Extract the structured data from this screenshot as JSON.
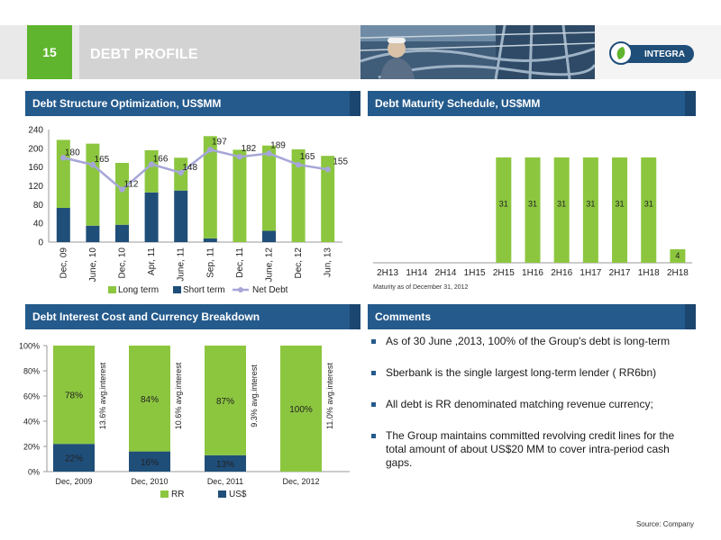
{
  "header": {
    "page_number": "15",
    "title": "DEBT PROFILE",
    "logo_text": "INTEGRA"
  },
  "colors": {
    "green": "#8cc63f",
    "navy": "#1f4e79",
    "panel_header": "#245a8c",
    "accent_green": "#5fb52e",
    "line": "#a6a6d8"
  },
  "panels": {
    "structure_title": "Debt Structure Optimization, US$MM",
    "maturity_title": "Debt Maturity Schedule, US$MM",
    "interest_title": "Debt Interest Cost and Currency Breakdown",
    "comments_title": "Comments"
  },
  "comments": [
    "As of 30 June ,2013, 100% of the Group's debt  is long-term",
    "Sberbank is the single largest long-term lender ( RR6bn)",
    "All debt  is RR denominated matching revenue currency;",
    "The Group maintains committed revolving credit lines for the total amount of about US$20 MM to cover intra-period cash gaps."
  ],
  "maturity_note": "Maturity as of December 31, 2012",
  "source": "Source: Company",
  "chart_data": [
    {
      "type": "bar",
      "stacked": true,
      "title": "Debt Structure Optimization, US$MM",
      "categories": [
        "Dec, 09",
        "June, 10",
        "Dec, 10",
        "Apr, 11",
        "June, 11",
        "Sep, 11",
        "Dec, 11",
        "June, 12",
        "Dec, 12",
        "Jun, 13"
      ],
      "series": [
        {
          "name": "Short term",
          "type": "bar",
          "values": [
            73,
            35,
            37,
            106,
            110,
            8,
            0,
            24,
            0,
            0
          ]
        },
        {
          "name": "Long term",
          "type": "bar",
          "values": [
            145,
            175,
            132,
            90,
            70,
            218,
            197,
            182,
            198,
            184
          ]
        },
        {
          "name": "Net Debt",
          "type": "line",
          "values": [
            180,
            165,
            112,
            166,
            148,
            197,
            182,
            189,
            165,
            155
          ]
        }
      ],
      "ylim": [
        0,
        240
      ],
      "yticks": [
        0,
        40,
        80,
        120,
        160,
        200,
        240
      ],
      "legend": [
        "Long term",
        "Short term",
        "Net Debt"
      ],
      "legend_position": "bottom",
      "grid": false
    },
    {
      "type": "bar",
      "title": "Debt Maturity Schedule, US$MM",
      "categories": [
        "2H13",
        "1H14",
        "2H14",
        "1H15",
        "2H15",
        "1H16",
        "2H16",
        "1H17",
        "2H17",
        "1H18",
        "2H18"
      ],
      "values": [
        0,
        0,
        0,
        0,
        31,
        31,
        31,
        31,
        31,
        31,
        4
      ],
      "data_labels": [
        "",
        "",
        "",
        "",
        "31",
        "31",
        "31",
        "31",
        "31",
        "31",
        "4"
      ],
      "ylim": [
        0,
        36
      ],
      "axis_labels_visible": false
    },
    {
      "type": "bar",
      "stacked": true,
      "percent": true,
      "title": "Debt Interest Cost and Currency Breakdown",
      "categories": [
        "Dec, 2009",
        "Dec, 2010",
        "Dec, 2011",
        "Dec, 2012"
      ],
      "series": [
        {
          "name": "US$",
          "values": [
            22,
            16,
            13,
            0
          ],
          "labels": [
            "22%",
            "16%",
            "13%",
            ""
          ]
        },
        {
          "name": "RR",
          "values": [
            78,
            84,
            87,
            100
          ],
          "labels": [
            "78%",
            "84%",
            "87%",
            "100%"
          ]
        }
      ],
      "annotations": [
        "13.6% avg.interest",
        "10.6% avg.interest",
        "9.3% avg.interest",
        "11.0% avg.interest"
      ],
      "ylim": [
        0,
        100
      ],
      "yticks": [
        "0%",
        "20%",
        "40%",
        "60%",
        "80%",
        "100%"
      ],
      "legend": [
        "RR",
        "US$"
      ],
      "legend_position": "bottom"
    }
  ]
}
